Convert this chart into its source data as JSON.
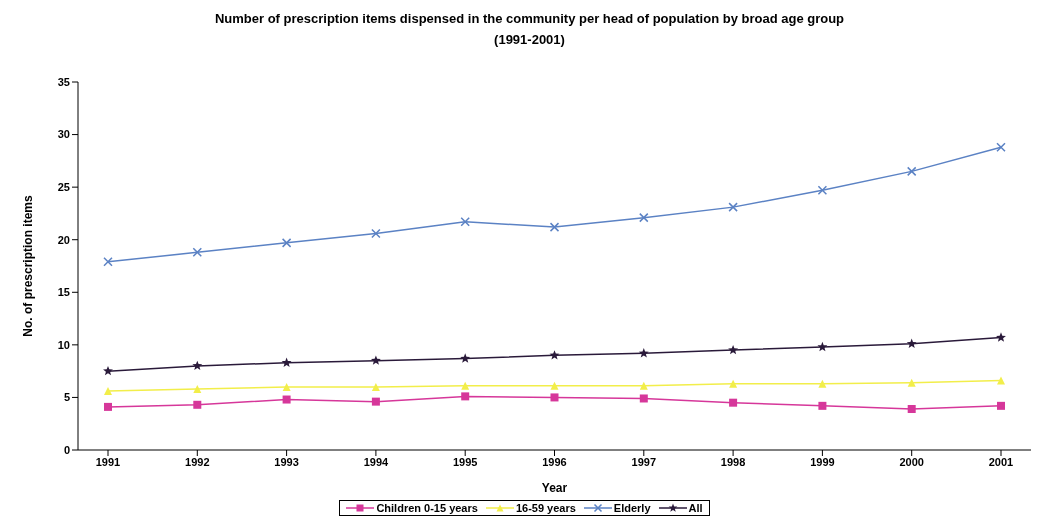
{
  "chart_data": {
    "type": "line",
    "title": "Number of prescription items dispensed in the community per head of population by broad age group (1991-2001)",
    "xlabel": "Year",
    "ylabel": "No. of prescription items",
    "categories": [
      "1991",
      "1992",
      "1993",
      "1994",
      "1995",
      "1996",
      "1997",
      "1998",
      "1999",
      "2000",
      "2001"
    ],
    "series": [
      {
        "name": "Children 0-15 years",
        "color": "#d6379a",
        "marker": "square",
        "values": [
          4.1,
          4.3,
          4.8,
          4.6,
          5.1,
          5.0,
          4.9,
          4.5,
          4.2,
          3.9,
          4.2
        ]
      },
      {
        "name": "16-59 years",
        "color": "#f2ee4a",
        "marker": "triangle",
        "values": [
          5.6,
          5.8,
          6.0,
          6.0,
          6.1,
          6.1,
          6.1,
          6.3,
          6.3,
          6.4,
          6.6
        ]
      },
      {
        "name": "Elderly",
        "color": "#5b82c4",
        "marker": "cross",
        "values": [
          17.9,
          18.8,
          19.7,
          20.6,
          21.7,
          21.2,
          22.1,
          23.1,
          24.7,
          26.5,
          28.8
        ]
      },
      {
        "name": "All",
        "color": "#2a1a3a",
        "marker": "star",
        "values": [
          7.5,
          8.0,
          8.3,
          8.5,
          8.7,
          9.0,
          9.2,
          9.5,
          9.8,
          10.1,
          10.7
        ]
      }
    ],
    "ylim": [
      0,
      35
    ],
    "yticks": [
      0,
      5,
      10,
      15,
      20,
      25,
      30,
      35
    ],
    "grid": false,
    "legend": "bottom"
  }
}
